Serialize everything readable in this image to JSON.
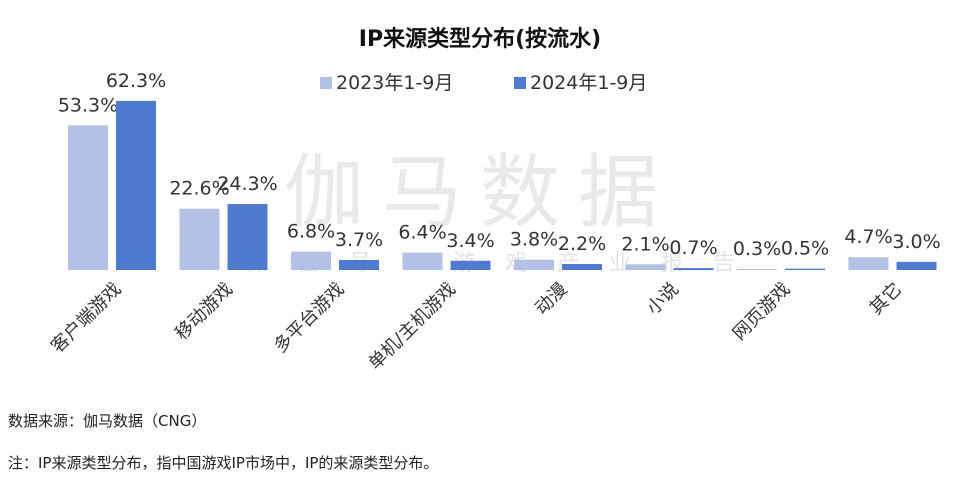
{
  "chart_data": {
    "type": "bar",
    "title": "IP来源类型分布(按流水)",
    "categories": [
      "客户端游戏",
      "移动游戏",
      "多平台游戏",
      "单机/主机游戏",
      "动漫",
      "小说",
      "网页游戏",
      "其它"
    ],
    "series": [
      {
        "name": "2023年1-9月",
        "values": [
          53.3,
          22.6,
          6.8,
          6.4,
          3.8,
          2.1,
          0.3,
          4.7
        ],
        "labels": [
          "53.3%",
          "22.6%",
          "6.8%",
          "6.4%",
          "3.8%",
          "2.1%",
          "0.3%",
          "4.7%"
        ],
        "color": "#b4c1e6"
      },
      {
        "name": "2024年1-9月",
        "values": [
          62.3,
          24.3,
          3.7,
          3.4,
          2.2,
          0.7,
          0.5,
          3.0
        ],
        "labels": [
          "62.3%",
          "24.3%",
          "3.7%",
          "3.4%",
          "2.2%",
          "0.7%",
          "0.5%",
          "3.0%"
        ],
        "color": "#4e7bd0"
      }
    ],
    "ylim": [
      0,
      70
    ],
    "grid": false,
    "legend_position": "top-center"
  },
  "watermark": {
    "main": "伽马数据",
    "sub": "微信号：游戏产业报告"
  },
  "footer": {
    "source": "数据来源：伽马数据（CNG）",
    "note": "注：IP来源类型分布，指中国游戏IP市场中，IP的来源类型分布。"
  }
}
